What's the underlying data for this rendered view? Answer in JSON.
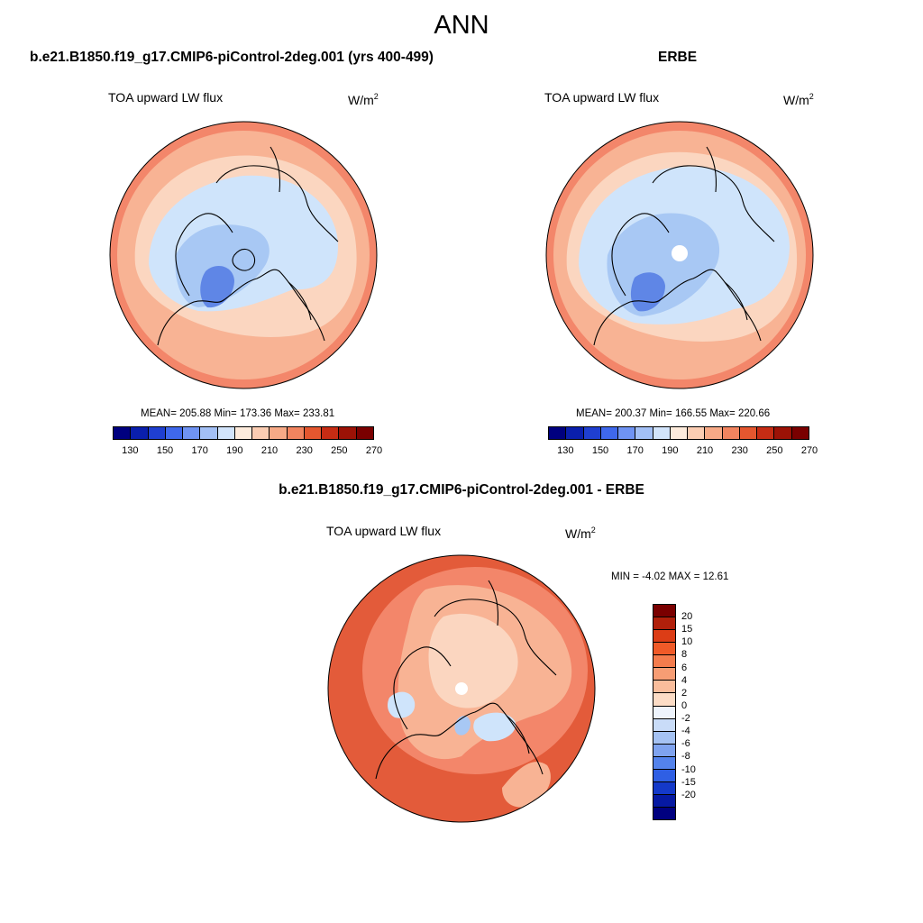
{
  "page_title": "ANN",
  "colors": {
    "ocean_low": "#cfe4fb",
    "mid_blue": "#a8c8f4",
    "deep_blue": "#5f86e6",
    "peach": "#fbd6c0",
    "light_orange": "#f8b394",
    "orange": "#f3866a",
    "red_orange": "#e35b3a",
    "coast": "#000000"
  },
  "panels": [
    {
      "title": "b.e21.B1850.f19_g17.CMIP6-piControl-2deg.001 (yrs 400-499)",
      "variable": "TOA upward LW flux",
      "units_base": "W/m",
      "units_sup": "2",
      "stats": "MEAN= 205.88  Min= 173.36  Max= 233.81"
    },
    {
      "title": "ERBE",
      "variable": "TOA upward LW flux",
      "units_base": "W/m",
      "units_sup": "2",
      "stats": "MEAN= 200.37  Min= 166.55  Max= 220.66"
    },
    {
      "title": "b.e21.B1850.f19_g17.CMIP6-piControl-2deg.001 - ERBE",
      "variable": "TOA upward LW flux",
      "units_base": "W/m",
      "units_sup": "2",
      "stats": "MIN =  -4.02 MAX =  12.61"
    }
  ],
  "abs_colorbar": {
    "ticks": [
      "130",
      "150",
      "170",
      "190",
      "210",
      "230",
      "250",
      "270"
    ],
    "colors": [
      "#00007f",
      "#0a1fad",
      "#1f3fd0",
      "#3f68ec",
      "#6f93f3",
      "#a3c0f6",
      "#d2e4fb",
      "#fdebdc",
      "#fbcdb3",
      "#f7aa87",
      "#f1845f",
      "#e4572f",
      "#c62c14",
      "#9c1206",
      "#7a0000"
    ]
  },
  "diff_colorbar": {
    "ticks": [
      "20",
      "15",
      "10",
      "8",
      "6",
      "4",
      "2",
      "0",
      "-2",
      "-4",
      "-6",
      "-8",
      "-10",
      "-15",
      "-20"
    ],
    "colors": [
      "#7a0000",
      "#b1200b",
      "#dc3d16",
      "#f05a28",
      "#f47c4d",
      "#f79d74",
      "#f9bd9c",
      "#fcdcc6",
      "#eef4fd",
      "#c9dcf8",
      "#a5c2f3",
      "#7fa3ef",
      "#5483ec",
      "#2f5fe4",
      "#1439c9",
      "#0619a2",
      "#00007f"
    ]
  }
}
